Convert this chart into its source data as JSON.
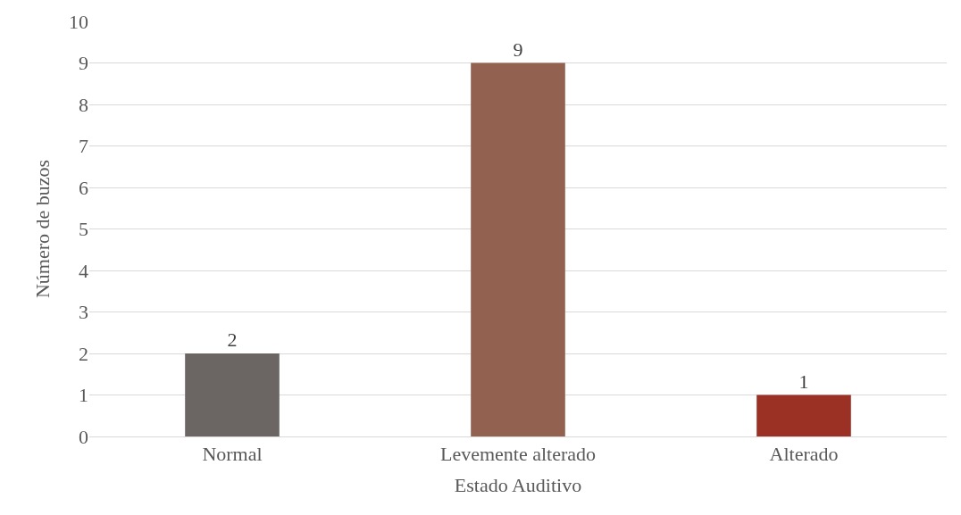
{
  "chart_data": {
    "type": "bar",
    "xlabel": "Estado Auditivo",
    "ylabel": "Número de buzos",
    "categories": [
      "Normal",
      "Levemente alterado",
      "Alterado"
    ],
    "values": [
      2,
      9,
      1
    ],
    "colors": [
      "#6b6563",
      "#93614f",
      "#9b3024"
    ],
    "ylim": [
      0,
      10
    ],
    "yticks": [
      0,
      1,
      2,
      3,
      4,
      5,
      6,
      7,
      8,
      9,
      10
    ],
    "grid": "y",
    "data_labels": true
  }
}
